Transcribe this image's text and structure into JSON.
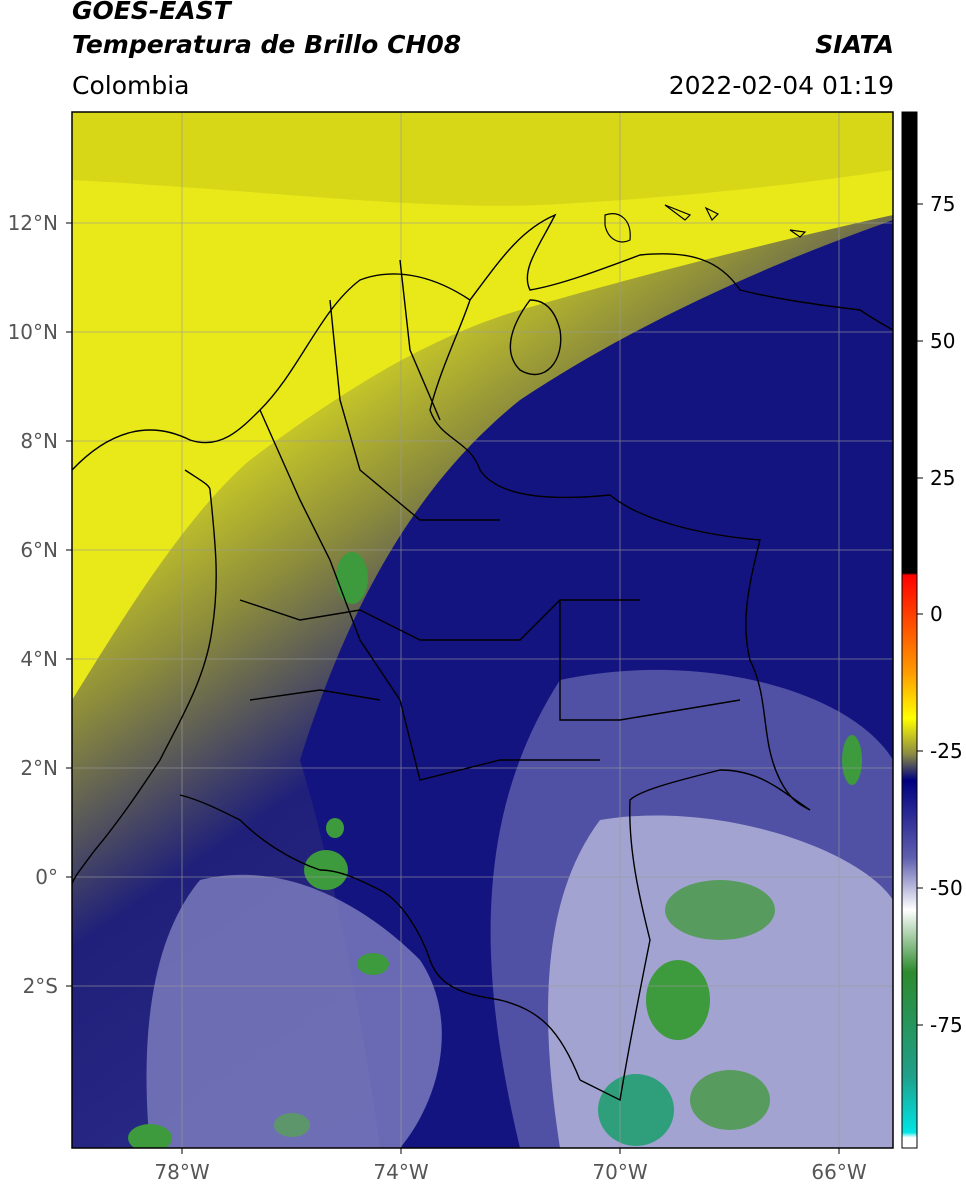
{
  "header": {
    "satellite": "GOES-EAST",
    "product": "Temperatura de Brillo CH08",
    "source": "SIATA",
    "region": "Colombia",
    "datetime": "2022-02-04 01:19"
  },
  "map": {
    "latitude_labels": [
      "12°N",
      "10°N",
      "8°N",
      "6°N",
      "4°N",
      "2°N",
      "0°",
      "2°S"
    ],
    "longitude_labels": [
      "78°W",
      "74°W",
      "70°W",
      "66°W"
    ],
    "extent": {
      "lon_min": -80,
      "lon_max": -65,
      "lat_min": -5.3,
      "lat_max": 14
    },
    "colorbar": {
      "ticks": [
        "75",
        "50",
        "25",
        "0",
        "-25",
        "-50",
        "-75"
      ],
      "stops": [
        {
          "value": 90,
          "color": "#000000"
        },
        {
          "value": 8,
          "color": "#000000"
        },
        {
          "value": 7.9,
          "color": "#ff0000"
        },
        {
          "value": -8,
          "color": "#ff9900"
        },
        {
          "value": -16,
          "color": "#ffff00"
        },
        {
          "value": -22,
          "color": "#8a8a44"
        },
        {
          "value": -26,
          "color": "#000080"
        },
        {
          "value": -40,
          "color": "#5f5fb0"
        },
        {
          "value": -49,
          "color": "#ffffff"
        },
        {
          "value": -60,
          "color": "#2e8b2e"
        },
        {
          "value": -78,
          "color": "#1fa08a"
        },
        {
          "value": -90,
          "color": "#00e5e5"
        },
        {
          "value": -92,
          "color": "#ffffff"
        }
      ]
    }
  }
}
